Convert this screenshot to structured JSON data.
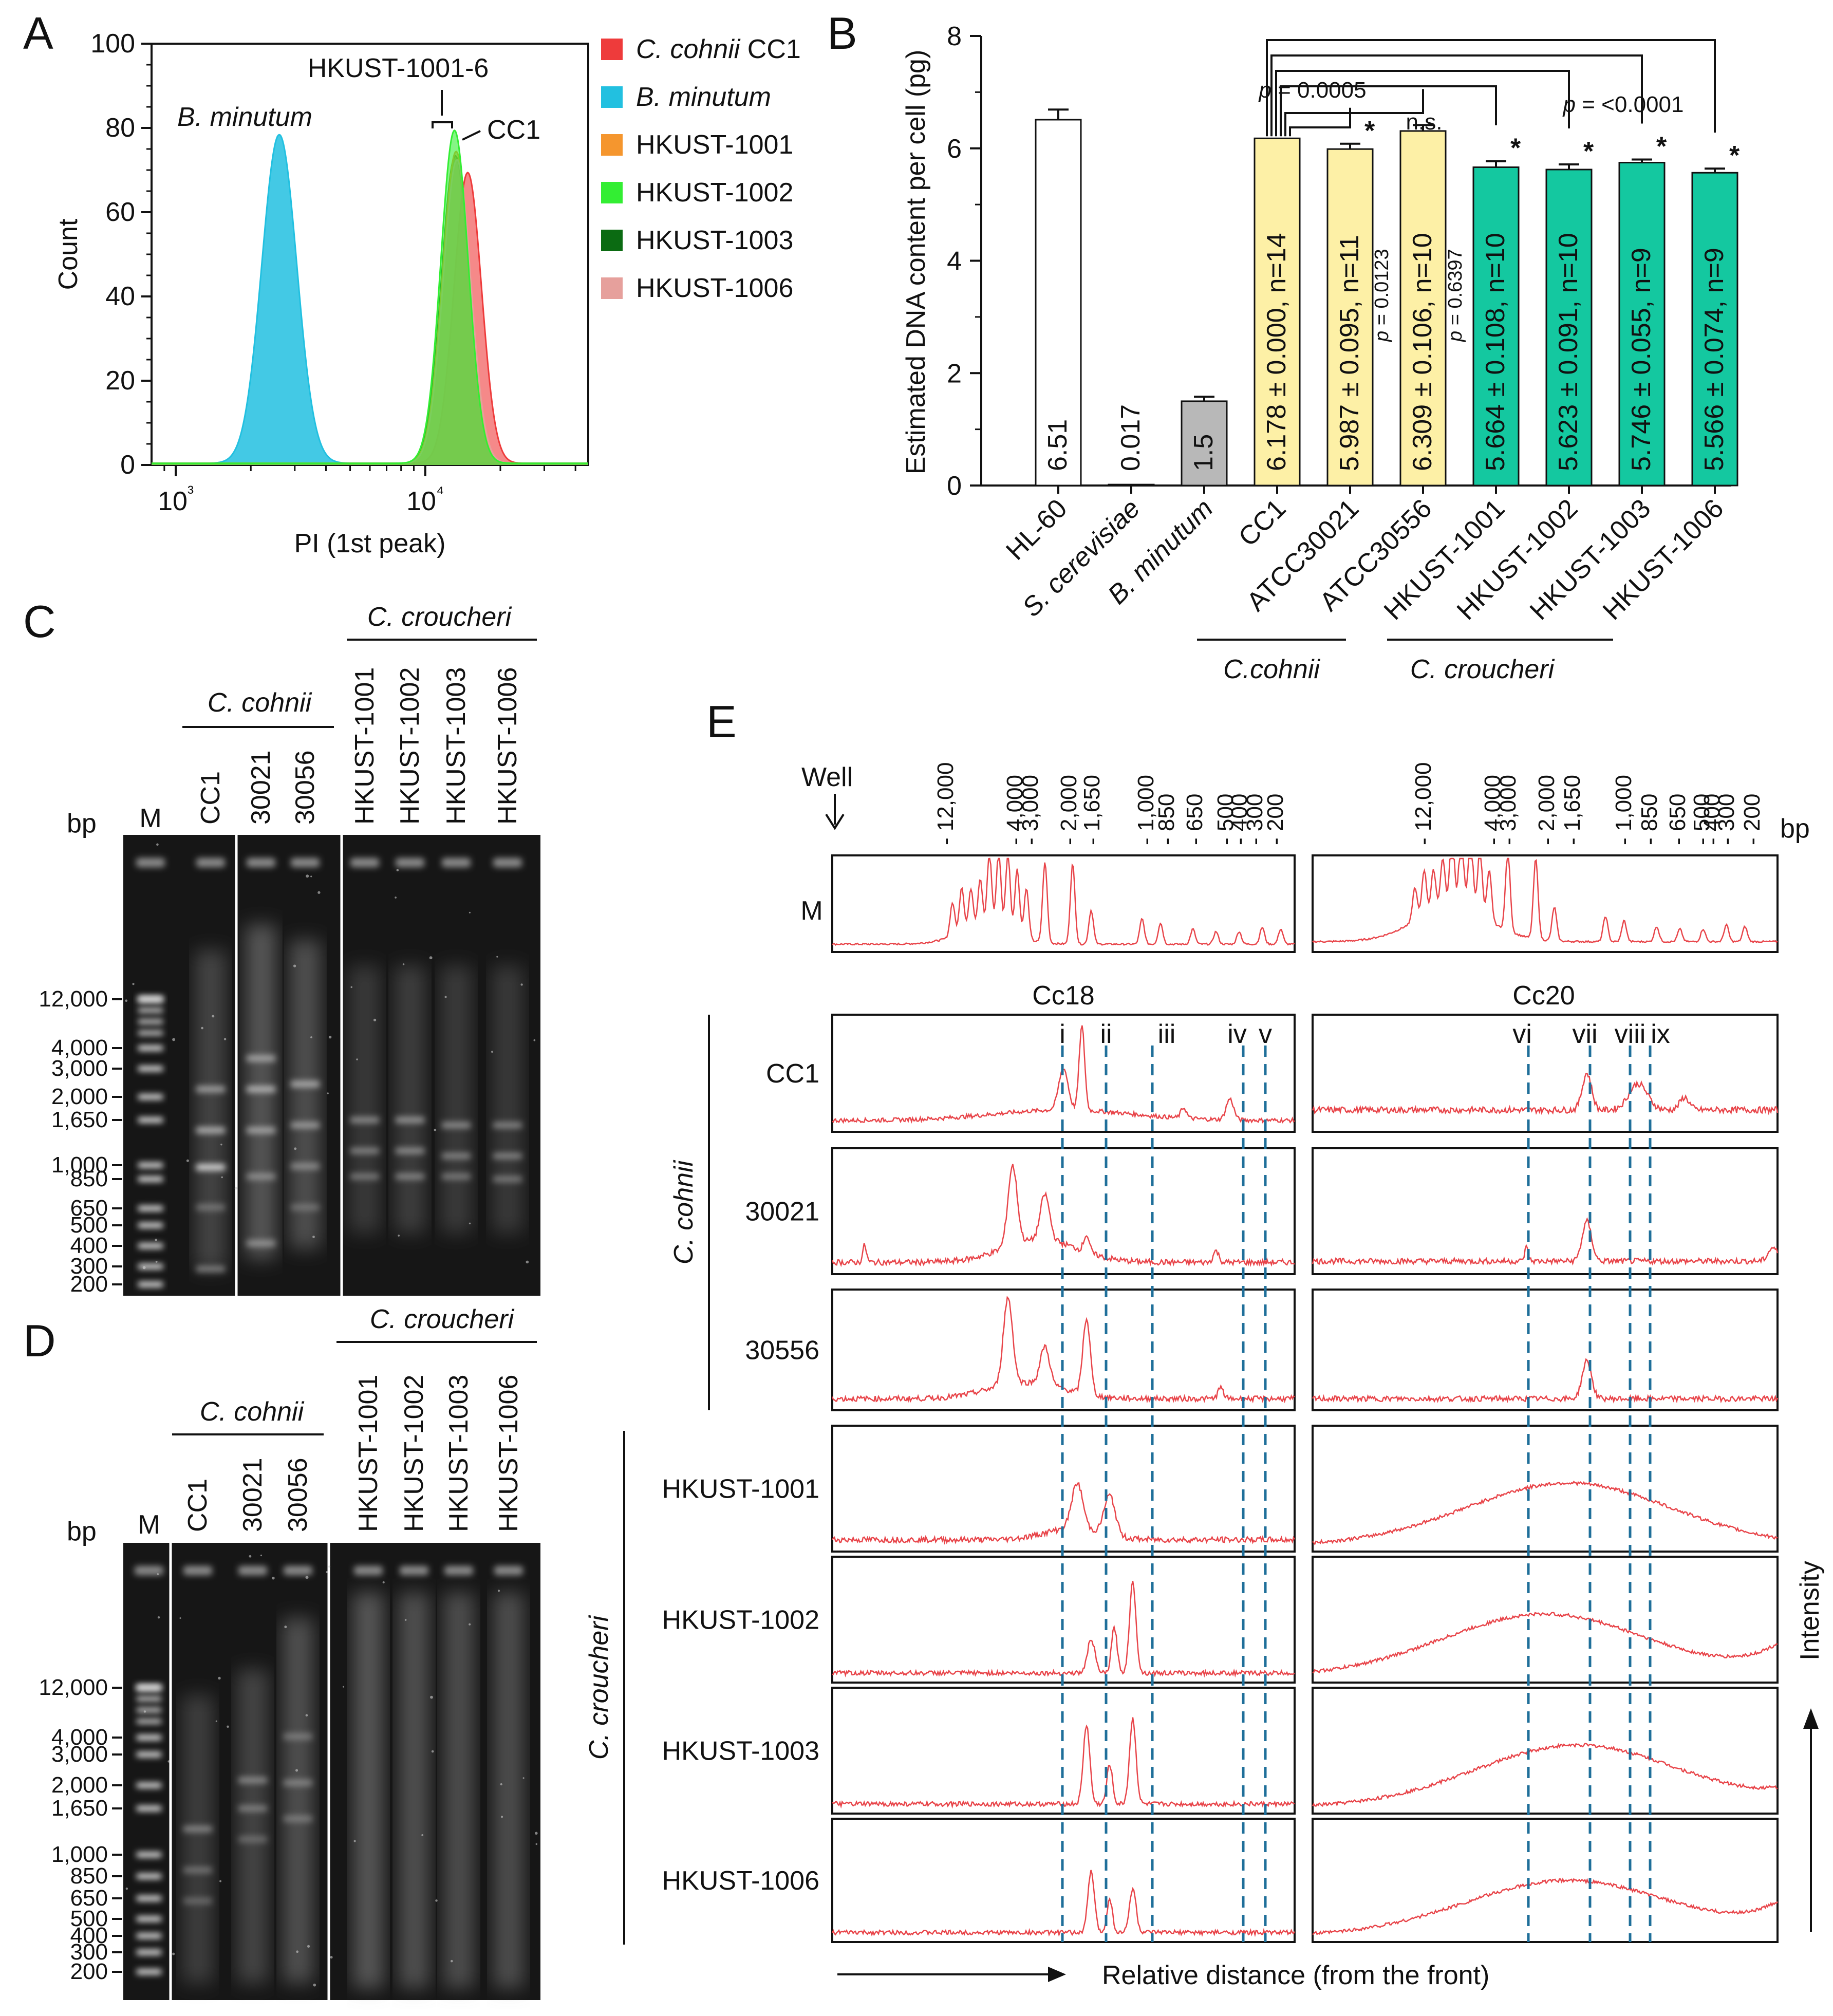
{
  "panels": {
    "a": "A",
    "b": "B",
    "c": "C",
    "d": "D",
    "e": "E"
  },
  "chart_data": [
    {
      "id": "A",
      "type": "area",
      "title": "HKUST-1001-6",
      "xlabel": "PI (1st peak)",
      "ylabel": "Count",
      "xscale": "log",
      "xlim": [
        800,
        45000
      ],
      "ylim": [
        0,
        100
      ],
      "x_ticks": [
        "10³",
        "10⁴"
      ],
      "y_ticks": [
        0,
        20,
        40,
        60,
        80,
        100
      ],
      "annotations": {
        "b_minutum": "B. minutum",
        "cc1": "CC1"
      },
      "series": [
        {
          "name": "C. cohnii CC1",
          "italic": "C. cohnii",
          "rest": " CC1",
          "color": "#ee3b3b",
          "peak": 14800,
          "height": 69,
          "width": 0.055
        },
        {
          "name": "B. minutum",
          "italic": "B. minutum",
          "rest": "",
          "color": "#22c0e0",
          "peak": 2600,
          "height": 78,
          "width": 0.07
        },
        {
          "name": "HKUST-1001",
          "italic": "",
          "rest": "HKUST-1001",
          "color": "#f5962e",
          "peak": 13300,
          "height": 74,
          "width": 0.055
        },
        {
          "name": "HKUST-1002",
          "italic": "",
          "rest": "HKUST-1002",
          "color": "#33ee33",
          "peak": 13100,
          "height": 79,
          "width": 0.055
        },
        {
          "name": "HKUST-1003",
          "italic": "",
          "rest": "HKUST-1003",
          "color": "#0b6b12",
          "peak": 13200,
          "height": 73,
          "width": 0.055
        },
        {
          "name": "HKUST-1006",
          "italic": "",
          "rest": "HKUST-1006",
          "color": "#e6a09c",
          "peak": 13400,
          "height": 72,
          "width": 0.055
        }
      ]
    },
    {
      "id": "B",
      "type": "bar",
      "ylabel": "Estimated DNA content per cell (pg)",
      "ylim": [
        0,
        8
      ],
      "y_ticks": [
        0,
        2,
        4,
        6,
        8
      ],
      "categories": [
        "HL-60",
        "S. cerevisiae",
        "B. minutum",
        "CC1",
        "ATCC30021",
        "ATCC30556",
        "HKUST-1001",
        "HKUST-1002",
        "HKUST-1003",
        "HKUST-1006"
      ],
      "italic_categories": [
        false,
        true,
        true,
        false,
        false,
        false,
        false,
        false,
        false,
        false
      ],
      "values": [
        6.51,
        0.017,
        1.5,
        6.178,
        5.987,
        6.309,
        5.664,
        5.623,
        5.746,
        5.566
      ],
      "errors": [
        0.18,
        0.0,
        0.08,
        0.0,
        0.095,
        0.106,
        0.108,
        0.091,
        0.055,
        0.074
      ],
      "bar_labels": [
        "6.51",
        "0.017",
        "1.5",
        "6.178 ± 0.000, n=14",
        "5.987 ± 0.095, n=11",
        "6.309 ± 0.106, n=10",
        "5.664 ± 0.108, n=10",
        "5.623 ± 0.091, n=10",
        "5.746 ± 0.055, n=9",
        "5.566 ± 0.074, n=9"
      ],
      "colors": [
        "#ffffff",
        "#ffffff",
        "#b8b8b8",
        "#fdf0a6",
        "#fdf0a6",
        "#fdf0a6",
        "#14c8a0",
        "#14c8a0",
        "#14c8a0",
        "#14c8a0"
      ],
      "stars": [
        "",
        "",
        "",
        "",
        "*",
        "",
        "*",
        "*",
        "*",
        "*"
      ],
      "p_labels": {
        "p1_pre": "p",
        "p1_val": " = 0.0005",
        "p2_pre": "p",
        "p2_val": " = <0.0001",
        "ns": "n.s.",
        "p3_pre": "p",
        "p3_val": " = 0.0123",
        "p4_pre": "p",
        "p4_val": " = 0.6397"
      },
      "groups": {
        "cohnii": "C.cohnii",
        "croucheri": "C. croucheri"
      }
    }
  ],
  "panelC": {
    "bp": "bp",
    "group_cohnii": "C. cohnii",
    "group_croucheri": "C. croucheri",
    "lanes": [
      "M",
      "CC1",
      "30021",
      "30056",
      "HKUST-1001",
      "HKUST-1002",
      "HKUST-1003",
      "HKUST-1006"
    ],
    "ladder": [
      "12,000",
      "4,000",
      "3,000",
      "2,000",
      "1,650",
      "1,000",
      "850",
      "650",
      "500",
      "400",
      "300",
      "200"
    ]
  },
  "panelD": {
    "bp": "bp",
    "group_cohnii": "C. cohnii",
    "group_croucheri": "C. croucheri",
    "lanes": [
      "M",
      "CC1",
      "30021",
      "30056",
      "HKUST-1001",
      "HKUST-1002",
      "HKUST-1003",
      "HKUST-1006"
    ],
    "ladder": [
      "12,000",
      "4,000",
      "3,000",
      "2,000",
      "1,650",
      "1,000",
      "850",
      "650",
      "500",
      "400",
      "300",
      "200"
    ]
  },
  "panelE": {
    "well": "Well",
    "bp": "bp",
    "bp_ticks": [
      "12,000",
      "4,000",
      "3,000",
      "2,000",
      "1,650",
      "1,000",
      "850",
      "650",
      "500",
      "400",
      "300",
      "200"
    ],
    "marker_row": "M",
    "cc18": "Cc18",
    "cc20": "Cc20",
    "left_peaks": [
      "i",
      "ii",
      "iii",
      "iv",
      "v"
    ],
    "right_peaks": [
      "vi",
      "vii",
      "viii",
      "ix"
    ],
    "group_cohnii": "C. cohnii",
    "group_croucheri": "C. croucheri",
    "rows": [
      "CC1",
      "30021",
      "30556",
      "HKUST-1001",
      "HKUST-1002",
      "HKUST-1003",
      "HKUST-1006"
    ],
    "xlabel": "Relative distance (from the front)",
    "ylabel": "Intensity"
  }
}
